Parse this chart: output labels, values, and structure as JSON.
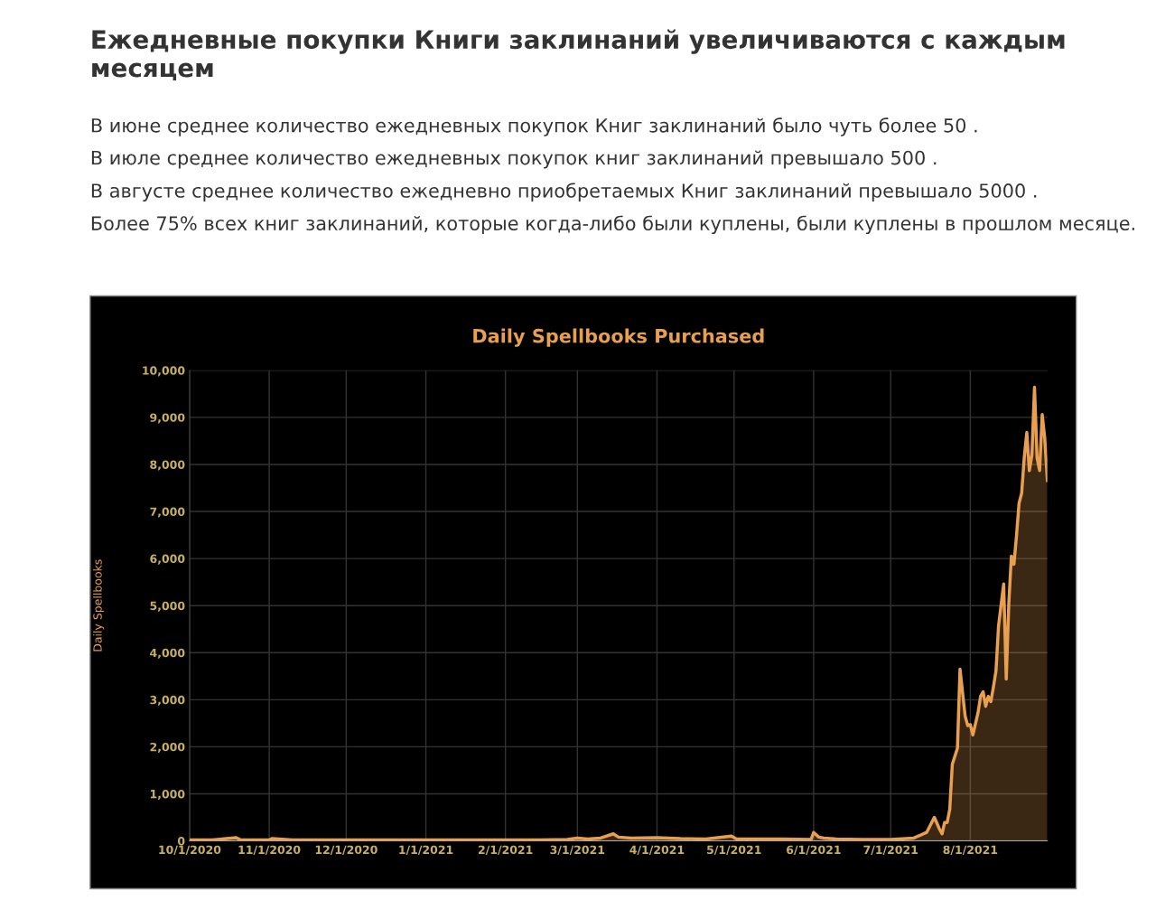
{
  "chart_data": {
    "type": "area",
    "title": "Daily Spellbooks Purchased",
    "ylabel": "Daily Spellbooks",
    "annotations": [
      "Ежедневные покупки Книги заклинаний увеличиваются с каждым месяцем",
      "В июне среднее количество ежедневных покупок Книг заклинаний было чуть более 50 .",
      "В июле среднее количество ежедневных покупок книг заклинаний превышало 500 .",
      "В августе среднее количество ежедневно приобретаемых Книг заклинаний превышало 5000 .",
      "Более 75% всех книг заклинаний, которые когда-либо были куплены, были куплены в прошлом месяце."
    ],
    "x": [
      "2020-10-01",
      "2020-10-10",
      "2020-10-19",
      "2020-10-21",
      "2020-10-25",
      "2020-11-01",
      "2020-11-02",
      "2020-11-10",
      "2020-11-20",
      "2020-12-01",
      "2020-12-15",
      "2021-01-01",
      "2021-01-15",
      "2021-02-01",
      "2021-02-15",
      "2021-02-25",
      "2021-03-01",
      "2021-03-05",
      "2021-03-10",
      "2021-03-15",
      "2021-03-17",
      "2021-03-22",
      "2021-04-01",
      "2021-04-10",
      "2021-04-20",
      "2021-04-30",
      "2021-05-02",
      "2021-05-10",
      "2021-05-20",
      "2021-05-31",
      "2021-06-01",
      "2021-06-03",
      "2021-06-05",
      "2021-06-10",
      "2021-06-20",
      "2021-07-01",
      "2021-07-10",
      "2021-07-15",
      "2021-07-18",
      "2021-07-20",
      "2021-07-21",
      "2021-07-22",
      "2021-07-23",
      "2021-07-24",
      "2021-07-25",
      "2021-07-27",
      "2021-07-28",
      "2021-07-30",
      "2021-07-31",
      "2021-08-01",
      "2021-08-02",
      "2021-08-04",
      "2021-08-05",
      "2021-08-06",
      "2021-08-07",
      "2021-08-08",
      "2021-08-09",
      "2021-08-10",
      "2021-08-11",
      "2021-08-12",
      "2021-08-14",
      "2021-08-15",
      "2021-08-16",
      "2021-08-17",
      "2021-08-18",
      "2021-08-19",
      "2021-08-20",
      "2021-08-21",
      "2021-08-22",
      "2021-08-23",
      "2021-08-24",
      "2021-08-25",
      "2021-08-26",
      "2021-08-27",
      "2021-08-28",
      "2021-08-29",
      "2021-08-30",
      "2021-08-31"
    ],
    "series": [
      {
        "color": "#e8a050",
        "values": [
          20,
          20,
          70,
          20,
          20,
          20,
          50,
          20,
          20,
          20,
          20,
          20,
          20,
          20,
          20,
          30,
          60,
          40,
          60,
          150,
          80,
          60,
          70,
          50,
          40,
          100,
          40,
          40,
          40,
          30,
          180,
          80,
          60,
          40,
          30,
          30,
          60,
          180,
          500,
          250,
          150,
          390,
          390,
          670,
          1630,
          1970,
          3650,
          2650,
          2450,
          2470,
          2250,
          2720,
          3070,
          3170,
          2860,
          3070,
          2960,
          3270,
          3610,
          4570,
          5460,
          3440,
          5050,
          6050,
          5880,
          6490,
          7180,
          7390,
          8140,
          8680,
          7870,
          8200,
          9640,
          8140,
          7870,
          9060,
          8550,
          7660
        ]
      }
    ],
    "xlim": [
      "2020-10-01",
      "2021-08-31"
    ],
    "xticks": [
      {
        "value": "2020-10-01",
        "label": "10/1/2020"
      },
      {
        "value": "2020-11-01",
        "label": "11/1/2020"
      },
      {
        "value": "2020-12-01",
        "label": "12/1/2020"
      },
      {
        "value": "2021-01-01",
        "label": "1/1/2021"
      },
      {
        "value": "2021-02-01",
        "label": "2/1/2021"
      },
      {
        "value": "2021-03-01",
        "label": "3/1/2021"
      },
      {
        "value": "2021-04-01",
        "label": "4/1/2021"
      },
      {
        "value": "2021-05-01",
        "label": "5/1/2021"
      },
      {
        "value": "2021-06-01",
        "label": "6/1/2021"
      },
      {
        "value": "2021-07-01",
        "label": "7/1/2021"
      },
      {
        "value": "2021-08-01",
        "label": "8/1/2021"
      }
    ],
    "ylim": [
      0,
      10000
    ],
    "yticks": [
      {
        "value": 0,
        "label": "0"
      },
      {
        "value": 1000,
        "label": "1,000"
      },
      {
        "value": 2000,
        "label": "2,000"
      },
      {
        "value": 3000,
        "label": "3,000"
      },
      {
        "value": 4000,
        "label": "4,000"
      },
      {
        "value": 5000,
        "label": "5,000"
      },
      {
        "value": 6000,
        "label": "6,000"
      },
      {
        "value": 7000,
        "label": "7,000"
      },
      {
        "value": 8000,
        "label": "8,000"
      },
      {
        "value": 9000,
        "label": "9,000"
      },
      {
        "value": 10000,
        "label": "10,000"
      }
    ],
    "grid": true,
    "legend": false
  }
}
